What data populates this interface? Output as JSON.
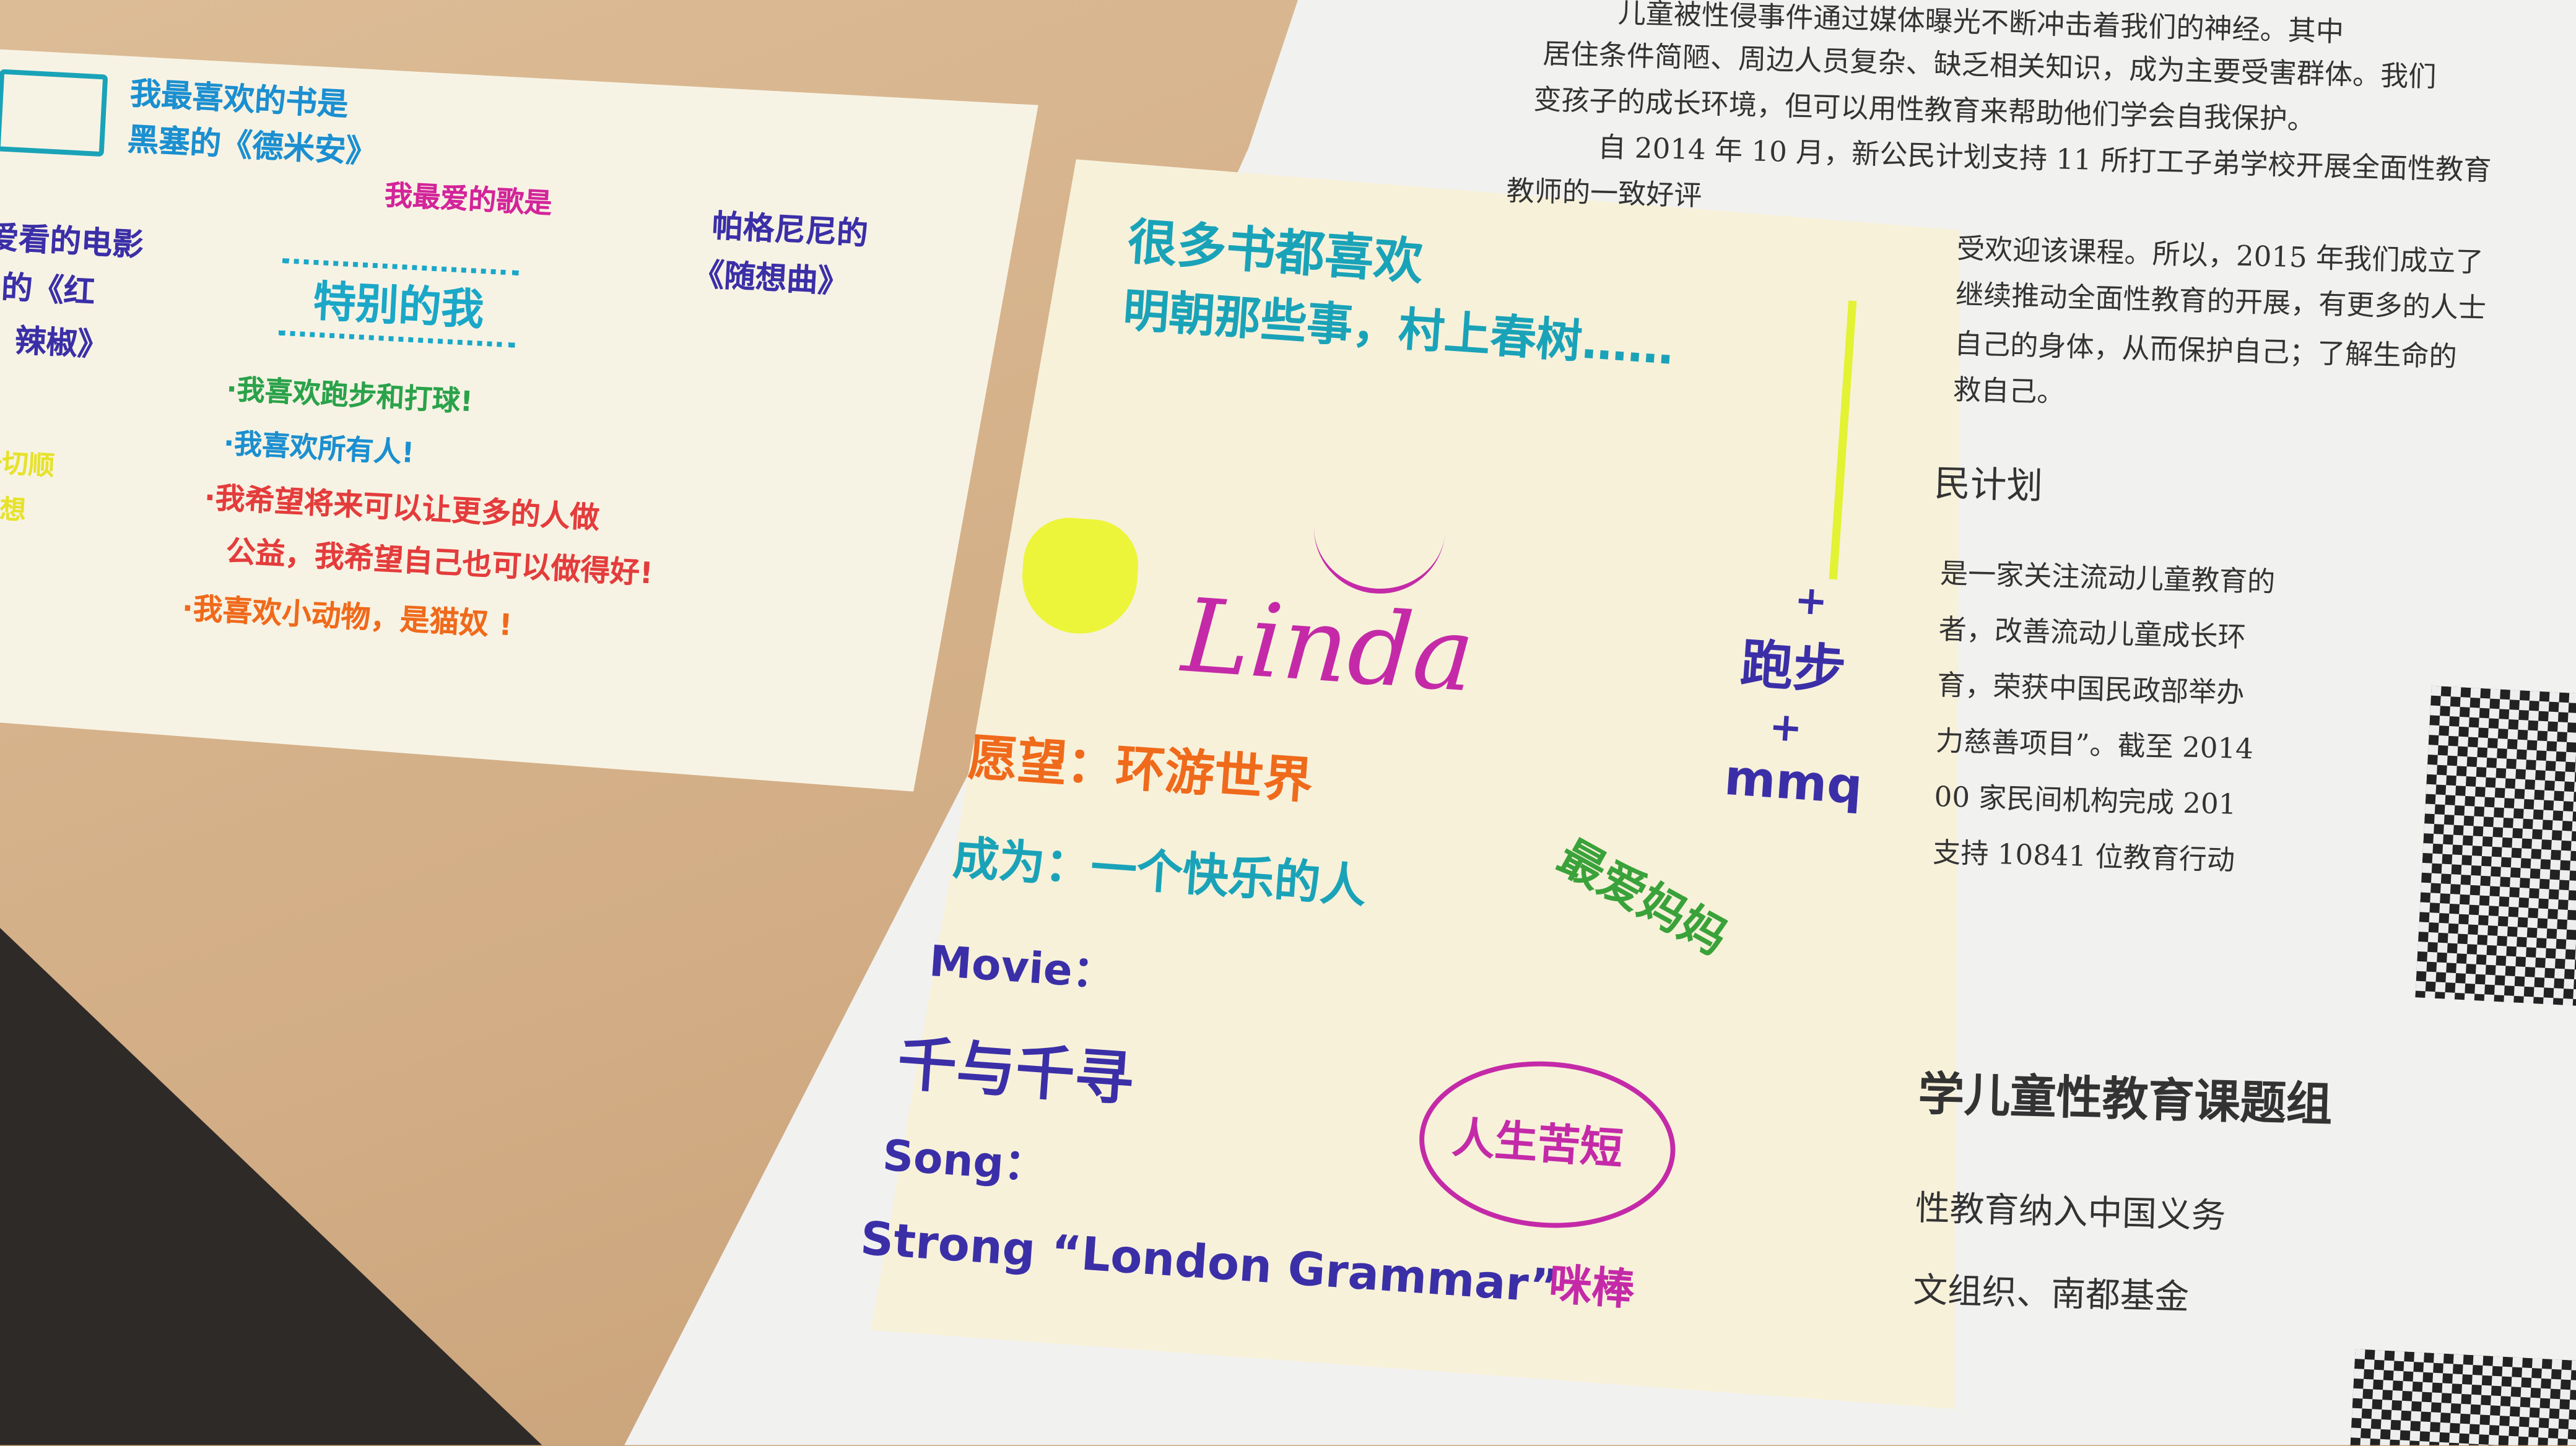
{
  "left_card": {
    "lines": [
      "我最喜欢的书是",
      "黑塞的《德米安》",
      "我最爱的歌是",
      "帕格尼尼的",
      "《随想曲》",
      "爱看的电影",
      "的《红",
      "辣椒》",
      "特别的我",
      "·我喜欢跑步和打球!",
      "·我喜欢所有人!",
      "一切顺",
      "心想",
      "·我希望将来可以让更多的人做",
      "公益，我希望自己也可以做得好!",
      "·我喜欢小动物，是猫奴 !"
    ]
  },
  "right_card": {
    "books": "很多书都喜欢",
    "books_detail": "明朝那些事，村上春树……",
    "name": "Linda",
    "plus_1": "+",
    "hobby": "跑步",
    "plus_2": "+",
    "mmq": "mmq",
    "love": "最爱妈妈",
    "wish": "愿望：环游世界",
    "become": "成为：一个快乐的人",
    "movie_label": "Movie：",
    "movie": "千与千寻",
    "song_label": "Song：",
    "song": "Strong “London Grammar”",
    "bubble": "人生苦短",
    "signature": "咪棒"
  },
  "document": {
    "lines": [
      "儿童被性侵事件通过媒体曝光不断冲击着我们的神经。其中",
      "居住条件简陋、周边人员复杂、缺乏相关知识，成为主要受害群体。我们",
      "变孩子的成长环境，但可以用性教育来帮助他们学会自我保护。",
      "自 2014 年 10 月，新公民计划支持 11 所打工子弟学校开展全面性教育",
      "教师的一致好评",
      "受欢迎该课程。所以，2015 年我们成立了",
      "继续推动全面性教育的开展，有更多的人士",
      "自己的身体，从而保护自己；了解生命的",
      "救自己。"
    ],
    "heading_1": "民计划",
    "section_lines": [
      "是一家关注流动儿童教育的",
      "者，改善流动儿童成长环",
      "育，荣获中国民政部举办",
      "力慈善项目”。截至 2014",
      "00 家民间机构完成 201",
      "支持 10841 位教育行动"
    ],
    "heading_2": "学儿童性教育课题组",
    "section2_lines": [
      "性教育纳入中国义务",
      "文组织、南都基金"
    ]
  }
}
